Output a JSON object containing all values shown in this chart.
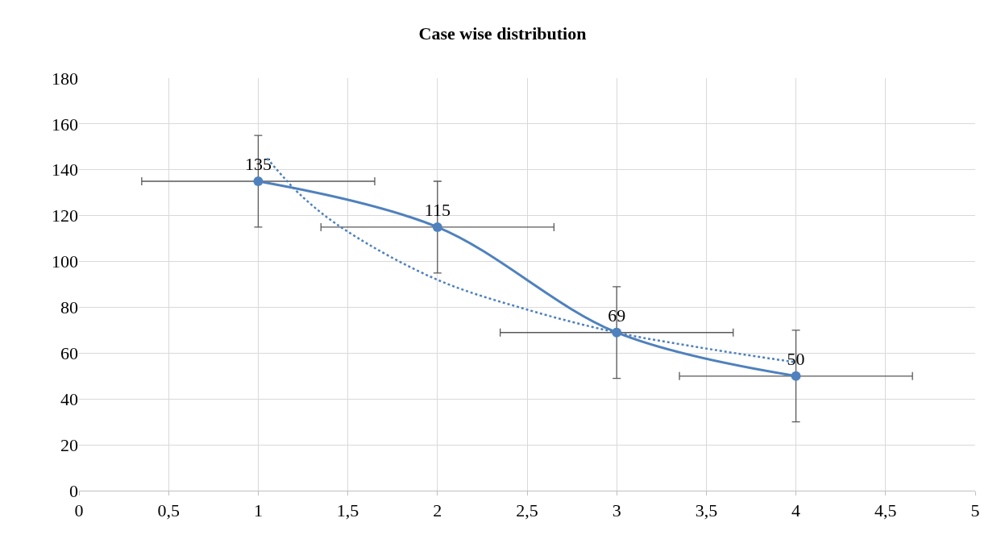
{
  "chart_data": {
    "type": "line",
    "title": "Case wise distribution",
    "x": [
      1,
      2,
      3,
      4
    ],
    "series": [
      {
        "color": "#4f81bd",
        "values": [
          135,
          115,
          69,
          50
        ],
        "value_labels": [
          "135",
          "115",
          "69",
          "50"
        ],
        "errors": [
          20,
          20,
          20,
          20
        ],
        "xerrors": [
          0.65,
          0.65,
          0.65,
          0.65
        ],
        "marker": "circle",
        "line_style": "solid"
      },
      {
        "color": "#4f81bd",
        "x": [
          1.05,
          1.25,
          1.5,
          2,
          2.5,
          3,
          3.5,
          4
        ],
        "values": [
          145,
          128,
          113,
          92,
          79,
          69,
          62,
          56
        ],
        "marker": "none",
        "line_style": "dotted"
      }
    ],
    "xlim": [
      0,
      5
    ],
    "xticks": [
      0,
      {
        "value": 0.5,
        "label": "0,5"
      },
      1,
      {
        "value": 1.5,
        "label": "1,5"
      },
      2,
      {
        "value": 2.5,
        "label": "2,5"
      },
      3,
      {
        "value": 3.5,
        "label": "3,5"
      },
      4,
      {
        "value": 4.5,
        "label": "4,5"
      },
      5
    ],
    "ylim": [
      0,
      180
    ],
    "yticks": [
      0,
      20,
      40,
      60,
      80,
      100,
      120,
      140,
      160,
      180
    ],
    "grid": true,
    "legend": false
  }
}
